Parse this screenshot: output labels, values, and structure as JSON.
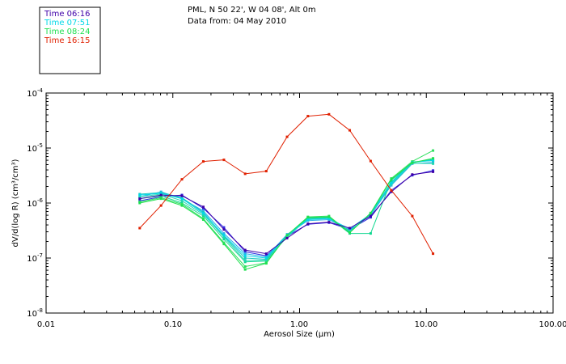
{
  "chart_data": {
    "type": "line",
    "title_line1": "PML, N 50 22', W 04 08', Alt 0m",
    "title_line2": "Data from: 04 May 2010",
    "xlabel": "Aerosol Size (μm)",
    "ylabel": "dV/d(log R) (cm³/cm³)",
    "x_scale": "log",
    "y_scale": "log",
    "xlim": [
      0.01,
      100
    ],
    "ylim": [
      1e-08,
      0.0001
    ],
    "x_tick_labels": [
      "0.01",
      "0.10",
      "1.00",
      "10.00",
      "100.00"
    ],
    "y_tick_exponents": [
      "-8",
      "-7",
      "-6",
      "-5",
      "-4"
    ],
    "x": [
      0.0548,
      0.0807,
      0.118,
      0.174,
      0.253,
      0.372,
      0.546,
      0.797,
      1.164,
      1.706,
      2.487,
      3.638,
      5.294,
      7.748,
      11.3
    ],
    "series": [
      {
        "name": "Time 06:16",
        "color": "#3f00a8",
        "values": [
          1.2e-06,
          1.4e-06,
          1.35e-06,
          8.5e-07,
          3.3e-07,
          1.4e-07,
          1.2e-07,
          2.3e-07,
          4.2e-07,
          4.5e-07,
          3.5e-07,
          5.8e-07,
          1.6e-06,
          3.3e-06,
          3.7e-06
        ]
      },
      {
        "name": "Time 07:51",
        "color": "#00d8e8",
        "values": [
          1.4e-06,
          1.5e-06,
          1.2e-06,
          6.5e-07,
          2.6e-07,
          1.1e-07,
          1e-07,
          2.6e-07,
          5e-07,
          5.2e-07,
          3.4e-07,
          6.3e-07,
          2.3e-06,
          5.5e-06,
          6e-06
        ]
      },
      {
        "name": "Time 08:24",
        "color": "#1fe050",
        "values": [
          1e-06,
          1.2e-06,
          9e-07,
          5e-07,
          1.8e-07,
          6.2e-08,
          8e-08,
          2.6e-07,
          5.5e-07,
          5.6e-07,
          2.9e-07,
          6.5e-07,
          2.7e-06,
          5.4e-06,
          6.5e-06
        ]
      },
      {
        "name": "Time 16:15",
        "color": "#e02000",
        "values": [
          3.5e-07,
          9e-07,
          2.7e-06,
          5.7e-06,
          6.1e-06,
          3.4e-06,
          3.8e-06,
          1.6e-05,
          3.8e-05,
          4.1e-05,
          2.1e-05,
          5.8e-06,
          1.7e-06,
          5.8e-07,
          1.2e-07
        ]
      }
    ],
    "background_series": [
      {
        "color": "#2b2ae0",
        "values": [
          1.1e-06,
          1.3e-06,
          1.4e-06,
          8e-07,
          3.6e-07,
          1.3e-07,
          1.1e-07,
          2.5e-07,
          4.1e-07,
          4.4e-07,
          3.3e-07,
          5.5e-07,
          1.7e-06,
          3.2e-06,
          3.9e-06
        ]
      },
      {
        "color": "#2bb0e8",
        "values": [
          1.3e-06,
          1.6e-06,
          1.2e-06,
          7.2e-07,
          2.8e-07,
          1.2e-07,
          1.05e-07,
          2.7e-07,
          4.8e-07,
          5e-07,
          3.2e-07,
          6e-07,
          2.1e-06,
          5.2e-06,
          5.5e-06
        ]
      },
      {
        "color": "#19c8c0",
        "values": [
          1.45e-06,
          1.55e-06,
          1.25e-06,
          6.8e-07,
          2.5e-07,
          1e-07,
          9.5e-08,
          2.6e-07,
          5.1e-07,
          5.3e-07,
          3e-07,
          6.4e-07,
          2.4e-06,
          5.6e-06,
          5.9e-06
        ]
      },
      {
        "color": "#10d890",
        "values": [
          1.2e-06,
          1.35e-06,
          1e-06,
          5.8e-07,
          2.2e-07,
          8.5e-08,
          8.8e-08,
          2.5e-07,
          5.3e-07,
          5.5e-07,
          2.8e-07,
          2.8e-07,
          2.6e-06,
          5.5e-06,
          6.2e-06
        ]
      },
      {
        "color": "#30e060",
        "values": [
          1.05e-06,
          1.25e-06,
          9.5e-07,
          5.2e-07,
          1.9e-07,
          7e-08,
          8.2e-08,
          2.6e-07,
          5.6e-07,
          5.8e-07,
          2.9e-07,
          6.6e-07,
          2.8e-06,
          5.7e-06,
          9e-06
        ]
      },
      {
        "color": "#22d8b0",
        "values": [
          1.3e-06,
          1.45e-06,
          1.1e-06,
          6.2e-07,
          2.4e-07,
          9e-08,
          9.2e-08,
          2.4e-07,
          5.2e-07,
          5.4e-07,
          3.1e-07,
          6.2e-07,
          2.2e-06,
          5.3e-06,
          5.2e-06
        ]
      }
    ]
  }
}
